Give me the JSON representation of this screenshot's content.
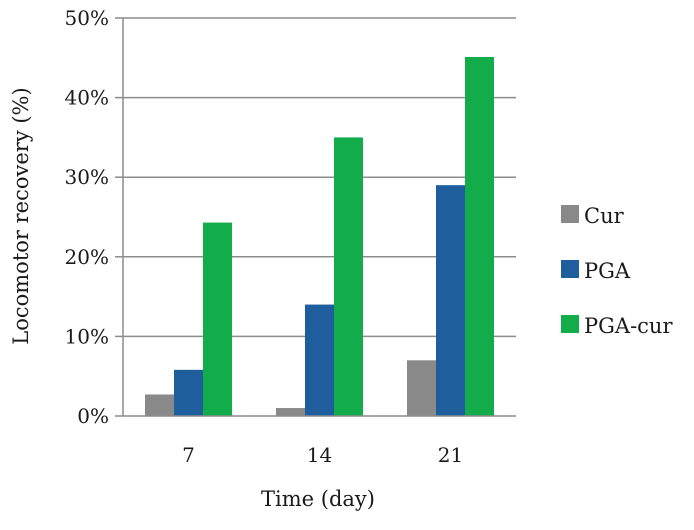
{
  "chart_data": {
    "type": "bar",
    "categories": [
      "7",
      "14",
      "21"
    ],
    "series": [
      {
        "name": "Cur",
        "values": [
          2.7,
          1.0,
          7.0
        ],
        "color": "#898989"
      },
      {
        "name": "PGA",
        "values": [
          5.8,
          14.0,
          29.0
        ],
        "color": "#1f5e9c"
      },
      {
        "name": "PGA-cur",
        "values": [
          24.3,
          35.0,
          45.1
        ],
        "color": "#12ac4b"
      }
    ],
    "title": "",
    "xlabel": "Time (day)",
    "ylabel": "Locomotor recovery (%)",
    "ylim": [
      0,
      50
    ],
    "yticks": [
      0,
      10,
      20,
      30,
      40,
      50
    ],
    "ytick_format": "percent",
    "grid": true,
    "legend_position": "right"
  }
}
